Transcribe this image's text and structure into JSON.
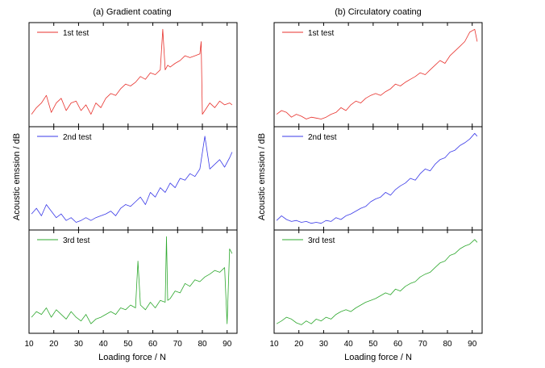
{
  "figure": {
    "panel_a_title": "(a) Gradient coating",
    "panel_b_title": "(b) Circulatory coating",
    "ylabel": "Acoustic emssion / dB",
    "xlabel": "Loading force / N",
    "xticks": [
      "10",
      "20",
      "30",
      "40",
      "50",
      "60",
      "70",
      "80",
      "90"
    ],
    "legend": [
      "1st test",
      "2nd test",
      "3rd test"
    ]
  },
  "chart_data": [
    {
      "type": "line",
      "title": "(a) Gradient coating",
      "xlabel": "Loading force / N",
      "ylabel": "Acoustic emssion / dB",
      "xlim": [
        10,
        94
      ],
      "ylim": [
        0,
        1
      ],
      "grid": false,
      "legend_position": "top-left",
      "series": [
        {
          "name": "1st test",
          "color": "#e8322d",
          "x": [
            11,
            13,
            15,
            17,
            19,
            21,
            23,
            25,
            27,
            29,
            31,
            33,
            35,
            37,
            39,
            41,
            43,
            45,
            47,
            49,
            51,
            53,
            55,
            57,
            59,
            61,
            63,
            64,
            65,
            66,
            67,
            69,
            71,
            73,
            75,
            77,
            79,
            79.5,
            80,
            81,
            83,
            85,
            87,
            89,
            91,
            92
          ],
          "values": [
            0.08,
            0.15,
            0.2,
            0.28,
            0.1,
            0.2,
            0.25,
            0.12,
            0.2,
            0.22,
            0.12,
            0.18,
            0.08,
            0.2,
            0.15,
            0.25,
            0.3,
            0.28,
            0.35,
            0.4,
            0.38,
            0.42,
            0.48,
            0.45,
            0.52,
            0.5,
            0.55,
            0.98,
            0.55,
            0.6,
            0.58,
            0.62,
            0.65,
            0.7,
            0.68,
            0.7,
            0.72,
            0.85,
            0.08,
            0.12,
            0.2,
            0.15,
            0.22,
            0.18,
            0.2,
            0.18
          ]
        },
        {
          "name": "2nd test",
          "color": "#3a3ae8",
          "x": [
            11,
            13,
            15,
            17,
            19,
            21,
            23,
            25,
            27,
            29,
            31,
            33,
            35,
            37,
            39,
            41,
            43,
            45,
            47,
            49,
            51,
            53,
            55,
            57,
            59,
            61,
            63,
            65,
            67,
            69,
            71,
            73,
            75,
            77,
            79,
            81,
            83,
            85,
            87,
            89,
            91,
            92
          ],
          "values": [
            0.12,
            0.18,
            0.1,
            0.22,
            0.15,
            0.08,
            0.12,
            0.05,
            0.08,
            0.03,
            0.05,
            0.08,
            0.05,
            0.08,
            0.1,
            0.12,
            0.15,
            0.1,
            0.18,
            0.22,
            0.2,
            0.25,
            0.3,
            0.22,
            0.35,
            0.3,
            0.4,
            0.35,
            0.45,
            0.4,
            0.5,
            0.48,
            0.55,
            0.52,
            0.6,
            0.95,
            0.6,
            0.65,
            0.7,
            0.62,
            0.72,
            0.78
          ]
        },
        {
          "name": "3rd test",
          "color": "#2ea82e",
          "x": [
            11,
            13,
            15,
            17,
            19,
            21,
            23,
            25,
            27,
            29,
            31,
            33,
            35,
            37,
            39,
            41,
            43,
            45,
            47,
            49,
            51,
            53,
            54,
            55,
            57,
            59,
            61,
            63,
            65,
            65.5,
            66,
            67,
            69,
            71,
            73,
            75,
            77,
            79,
            81,
            83,
            85,
            87,
            89,
            90,
            91,
            92
          ],
          "values": [
            0.12,
            0.18,
            0.15,
            0.22,
            0.12,
            0.2,
            0.15,
            0.1,
            0.18,
            0.12,
            0.08,
            0.15,
            0.05,
            0.1,
            0.12,
            0.15,
            0.18,
            0.15,
            0.22,
            0.2,
            0.25,
            0.22,
            0.72,
            0.25,
            0.2,
            0.28,
            0.22,
            0.3,
            0.28,
            0.98,
            0.3,
            0.32,
            0.4,
            0.38,
            0.48,
            0.45,
            0.52,
            0.5,
            0.55,
            0.58,
            0.62,
            0.6,
            0.65,
            0.05,
            0.85,
            0.8
          ]
        }
      ]
    },
    {
      "type": "line",
      "title": "(b) Circulatory coating",
      "xlabel": "Loading force / N",
      "ylabel": "Acoustic emssion / dB",
      "xlim": [
        10,
        94
      ],
      "ylim": [
        0,
        1
      ],
      "grid": false,
      "legend_position": "top-left",
      "series": [
        {
          "name": "1st test",
          "color": "#e8322d",
          "x": [
            11,
            13,
            15,
            17,
            19,
            21,
            23,
            25,
            27,
            29,
            31,
            33,
            35,
            37,
            39,
            41,
            43,
            45,
            47,
            49,
            51,
            53,
            55,
            57,
            59,
            61,
            63,
            65,
            67,
            69,
            71,
            73,
            75,
            77,
            79,
            81,
            83,
            85,
            87,
            89,
            91,
            92
          ],
          "values": [
            0.08,
            0.12,
            0.1,
            0.05,
            0.08,
            0.06,
            0.03,
            0.05,
            0.04,
            0.03,
            0.05,
            0.08,
            0.1,
            0.15,
            0.12,
            0.18,
            0.22,
            0.2,
            0.25,
            0.28,
            0.3,
            0.28,
            0.32,
            0.35,
            0.4,
            0.38,
            0.42,
            0.45,
            0.48,
            0.52,
            0.5,
            0.55,
            0.6,
            0.65,
            0.62,
            0.7,
            0.75,
            0.8,
            0.85,
            0.95,
            0.98,
            0.85
          ]
        },
        {
          "name": "2nd test",
          "color": "#3a3ae8",
          "x": [
            11,
            13,
            15,
            17,
            19,
            21,
            23,
            25,
            27,
            29,
            31,
            33,
            35,
            37,
            39,
            41,
            43,
            45,
            47,
            49,
            51,
            53,
            55,
            57,
            59,
            61,
            63,
            65,
            67,
            69,
            71,
            73,
            75,
            77,
            79,
            81,
            83,
            85,
            87,
            89,
            91,
            92
          ],
          "values": [
            0.05,
            0.1,
            0.06,
            0.04,
            0.05,
            0.03,
            0.04,
            0.02,
            0.03,
            0.02,
            0.05,
            0.04,
            0.08,
            0.06,
            0.1,
            0.12,
            0.15,
            0.18,
            0.2,
            0.25,
            0.28,
            0.3,
            0.35,
            0.32,
            0.38,
            0.42,
            0.45,
            0.5,
            0.48,
            0.55,
            0.6,
            0.58,
            0.65,
            0.7,
            0.72,
            0.78,
            0.8,
            0.85,
            0.88,
            0.92,
            0.98,
            0.95
          ]
        },
        {
          "name": "3rd test",
          "color": "#2ea82e",
          "x": [
            11,
            13,
            15,
            17,
            19,
            21,
            23,
            25,
            27,
            29,
            31,
            33,
            35,
            37,
            39,
            41,
            43,
            45,
            47,
            49,
            51,
            53,
            55,
            57,
            59,
            61,
            63,
            65,
            67,
            69,
            71,
            73,
            75,
            77,
            79,
            81,
            83,
            85,
            87,
            89,
            91,
            92
          ],
          "values": [
            0.05,
            0.08,
            0.12,
            0.1,
            0.06,
            0.04,
            0.08,
            0.05,
            0.1,
            0.08,
            0.12,
            0.1,
            0.15,
            0.18,
            0.2,
            0.18,
            0.22,
            0.25,
            0.28,
            0.3,
            0.32,
            0.35,
            0.38,
            0.36,
            0.42,
            0.4,
            0.45,
            0.48,
            0.5,
            0.55,
            0.58,
            0.6,
            0.65,
            0.7,
            0.72,
            0.78,
            0.8,
            0.85,
            0.88,
            0.9,
            0.95,
            0.92
          ]
        }
      ]
    }
  ]
}
